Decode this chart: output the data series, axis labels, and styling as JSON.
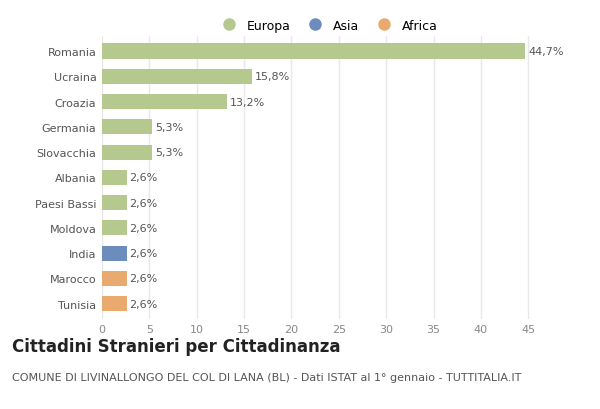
{
  "categories": [
    "Romania",
    "Ucraina",
    "Croazia",
    "Germania",
    "Slovacchia",
    "Albania",
    "Paesi Bassi",
    "Moldova",
    "India",
    "Marocco",
    "Tunisia"
  ],
  "values": [
    44.7,
    15.8,
    13.2,
    5.3,
    5.3,
    2.6,
    2.6,
    2.6,
    2.6,
    2.6,
    2.6
  ],
  "labels": [
    "44,7%",
    "15,8%",
    "13,2%",
    "5,3%",
    "5,3%",
    "2,6%",
    "2,6%",
    "2,6%",
    "2,6%",
    "2,6%",
    "2,6%"
  ],
  "colors": [
    "#b5c98e",
    "#b5c98e",
    "#b5c98e",
    "#b5c98e",
    "#b5c98e",
    "#b5c98e",
    "#b5c98e",
    "#b5c98e",
    "#6b8cbc",
    "#e8aa6e",
    "#e8aa6e"
  ],
  "legend_labels": [
    "Europa",
    "Asia",
    "Africa"
  ],
  "legend_colors": [
    "#b5c98e",
    "#6b8cbc",
    "#e8aa6e"
  ],
  "title": "Cittadini Stranieri per Cittadinanza",
  "subtitle": "COMUNE DI LIVINALLONGO DEL COL DI LANA (BL) - Dati ISTAT al 1° gennaio - TUTTITALIA.IT",
  "xlim": [
    0,
    47.5
  ],
  "xticks": [
    0,
    5,
    10,
    15,
    20,
    25,
    30,
    35,
    40,
    45
  ],
  "background_color": "#ffffff",
  "ax_background": "#ffffff",
  "grid_color": "#e8e8e8",
  "title_fontsize": 12,
  "subtitle_fontsize": 8,
  "label_fontsize": 8,
  "tick_fontsize": 8,
  "legend_fontsize": 9
}
